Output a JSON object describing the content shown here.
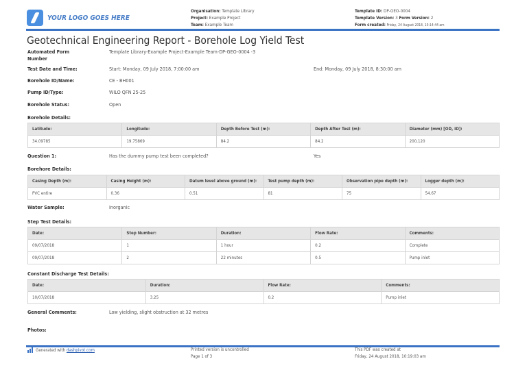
{
  "header": {
    "logo_text": "YOUR LOGO GOES HERE",
    "organisation_label": "Organisation:",
    "organisation": "Template Library",
    "project_label": "Project:",
    "project": "Example Project",
    "team_label": "Team:",
    "team": "Example Team",
    "template_id_label": "Template ID:",
    "template_id": "DP-GEO-0004",
    "template_version_label": "Template Version:",
    "template_version": "3",
    "form_version_label": "Form Version:",
    "form_version": "2",
    "form_created_label": "Form created:",
    "form_created": "Friday, 24 August 2018, 10:14:44 am"
  },
  "title": "Geotechnical Engineering Report - Borehole Log Yield Test",
  "fields": {
    "form_number_label": "Automated Form Number",
    "form_number": "Template Library-Example Project-Example Team-DP-GEO-0004   -3",
    "test_date_label": "Test Date and Time:",
    "test_start": "Start: Monday, 09 July 2018, 7:00:00 am",
    "test_end": "End: Monday, 09 July 2018, 8:30:00 am",
    "borehole_id_label": "Borehole ID/Name:",
    "borehole_id": "CE - BH001",
    "pump_label": "Pump ID/Type:",
    "pump": "WILO QFN 25-25",
    "status_label": "Borehole Status:",
    "status": "Open",
    "question_label": "Question 1:",
    "question": "Has the dummy pump test been completed?",
    "answer": "Yes",
    "water_label": "Water Sample:",
    "water": "Inorganic",
    "comments_label": "General Comments:",
    "comments": "Low yielding, slight obstruction at 32 metres",
    "photos_label": "Photos:"
  },
  "tables": [
    {
      "title": "Borehole Details:",
      "headers": [
        "Latitude:",
        "Longitude:",
        "Depth Before Test (m):",
        "Depth After Test (m):",
        "Diameter (mm) [OD, ID]:"
      ],
      "rows": [
        [
          "34.09785",
          "19.75869",
          "84.2",
          "84.2",
          "200,120"
        ]
      ]
    },
    {
      "title": "Borehore Details:",
      "headers": [
        "Casing Depth (m):",
        "Casing Height (m):",
        "Datum level above ground (m):",
        "Test pump depth (m):",
        "Observation pipe depth (m):",
        "Logger depth (m):"
      ],
      "rows": [
        [
          "PVC entire",
          "0.36",
          "0.51",
          "81",
          "75",
          "54.67"
        ]
      ]
    },
    {
      "title": "Step Test Details:",
      "headers": [
        "Date:",
        "Step Number:",
        "Duration:",
        "Flow Rate:",
        "Comments:"
      ],
      "rows": [
        [
          "09/07/2018",
          "1",
          "1 hour",
          "0.2",
          "Complete"
        ],
        [
          "09/07/2018",
          "2",
          "22 minutes",
          "0.5",
          "Pump inlet"
        ]
      ]
    },
    {
      "title": "Constant Discharge Test Details:",
      "headers": [
        "Date:",
        "Duration:",
        "Flow Rate:",
        "Comments:"
      ],
      "rows": [
        [
          "10/07/2018",
          "3.25",
          "0.2",
          "Pump inlet"
        ]
      ]
    }
  ],
  "footer": {
    "generated": "Generated with",
    "link": "dashpivot.com",
    "printed": "Printed version is uncontrolled",
    "page": "Page 1 of 3",
    "pdf_created": "This PDF was created at",
    "pdf_date": "Friday, 24 August 2018, 10:19:03 am"
  },
  "colors": {
    "accent": "#3a72c4",
    "table_header": "#e6e6e6"
  }
}
